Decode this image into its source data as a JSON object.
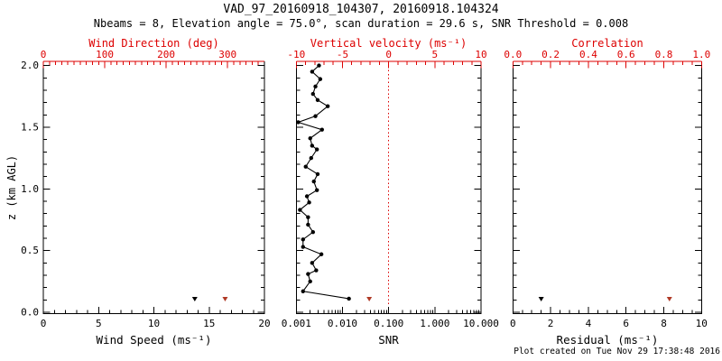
{
  "header": {
    "title": "VAD_97_20160918_104307, 20160918.104324",
    "subtitle": "Nbeams = 8, Elevation angle = 75.0°, scan duration = 29.6 s, SNR Threshold = 0.008"
  },
  "footer": {
    "created_text": "Plot created on Tue Nov 29 17:38:48 2016"
  },
  "colors": {
    "axis_red": "#dd0000",
    "marker_red": "#b03a26",
    "black": "#000000",
    "background": "#ffffff"
  },
  "chart_data": {
    "type": "scatter",
    "y_axis": {
      "label": "z (km AGL)",
      "range": [
        0,
        2
      ],
      "tick_values": [
        0,
        0.5,
        1,
        1.5,
        2
      ],
      "ticks": [
        "0.0",
        "0.5",
        "1.0",
        "1.5",
        "2.0"
      ],
      "minor_step": 0.1
    },
    "panels": [
      {
        "name": "wind",
        "x_top": {
          "label": "Wind Direction (deg)",
          "color": "red",
          "range": [
            0,
            360
          ],
          "tick_values": [
            0,
            100,
            200,
            300
          ],
          "ticks": [
            "0",
            "100",
            "200",
            "300"
          ],
          "minor_step": 10
        },
        "x_bottom": {
          "label": "Wind Speed (ms⁻¹)",
          "range": [
            0,
            20
          ],
          "tick_values": [
            0,
            5,
            10,
            15,
            20
          ],
          "ticks": [
            "0",
            "5",
            "10",
            "15",
            "20"
          ],
          "minor_step": 1
        },
        "markers": [
          {
            "series": "wind_speed",
            "x_axis": "bottom",
            "color": "black",
            "value": 13.7,
            "z_km": 0.11
          },
          {
            "series": "wind_direction",
            "x_axis": "top",
            "color": "red",
            "value": 296,
            "z_km": 0.11
          }
        ]
      },
      {
        "name": "snr-vertical-velocity",
        "x_top": {
          "label": "Vertical velocity (ms⁻¹)",
          "color": "red",
          "range": [
            -10,
            10
          ],
          "tick_values": [
            -10,
            -5,
            0,
            5,
            10
          ],
          "ticks": [
            "-10",
            "-5",
            "0",
            "5",
            "10"
          ],
          "minor_step": 1
        },
        "x_bottom": {
          "label": "SNR",
          "scale": "log",
          "range": [
            0.001,
            10
          ],
          "tick_values": [
            0.001,
            0.01,
            0.1,
            1,
            10
          ],
          "ticks": [
            "0.001",
            "0.010",
            "0.100",
            "1.000",
            "10.000"
          ]
        },
        "reference_line": {
          "x_axis": "top",
          "value": 0,
          "style": "dotted",
          "color": "red"
        },
        "profile": {
          "series": "snr_profile",
          "color": "black",
          "z_km": [
            2.0,
            1.95,
            1.89,
            1.83,
            1.77,
            1.72,
            1.67,
            1.59,
            1.54,
            1.48,
            1.41,
            1.35,
            1.32,
            1.25,
            1.18,
            1.12,
            1.06,
            0.99,
            0.94,
            0.89,
            0.83,
            0.77,
            0.71,
            0.65,
            0.59,
            0.53,
            0.47,
            0.4,
            0.34,
            0.31,
            0.25,
            0.17,
            0.11
          ],
          "snr": [
            0.0031,
            0.0022,
            0.0033,
            0.0026,
            0.0023,
            0.0029,
            0.0048,
            0.0026,
            0.0011,
            0.0036,
            0.002,
            0.0022,
            0.0028,
            0.0021,
            0.0016,
            0.0029,
            0.0024,
            0.0028,
            0.0017,
            0.0019,
            0.0012,
            0.0018,
            0.0018,
            0.0023,
            0.0014,
            0.0014,
            0.0035,
            0.0022,
            0.0027,
            0.0018,
            0.002,
            0.0014,
            0.0138
          ]
        },
        "markers": [
          {
            "series": "vertical_velocity",
            "x_axis": "top",
            "color": "red",
            "value": -2.1,
            "z_km": 0.11
          }
        ]
      },
      {
        "name": "residual-correlation",
        "x_top": {
          "label": "Correlation",
          "color": "red",
          "range": [
            0,
            1
          ],
          "tick_values": [
            0,
            0.2,
            0.4,
            0.6,
            0.8,
            1
          ],
          "ticks": [
            "0.0",
            "0.2",
            "0.4",
            "0.6",
            "0.8",
            "1.0"
          ],
          "minor_step": 0.05
        },
        "x_bottom": {
          "label": "Residual (ms⁻¹)",
          "range": [
            0,
            10
          ],
          "tick_values": [
            0,
            2,
            4,
            6,
            8,
            10
          ],
          "ticks": [
            "0",
            "2",
            "4",
            "6",
            "8",
            "10"
          ],
          "minor_step": 0.5
        },
        "markers": [
          {
            "series": "residual",
            "x_axis": "bottom",
            "color": "black",
            "value": 1.5,
            "z_km": 0.11
          },
          {
            "series": "correlation",
            "x_axis": "top",
            "color": "red",
            "value": 0.83,
            "z_km": 0.11
          }
        ]
      }
    ]
  }
}
